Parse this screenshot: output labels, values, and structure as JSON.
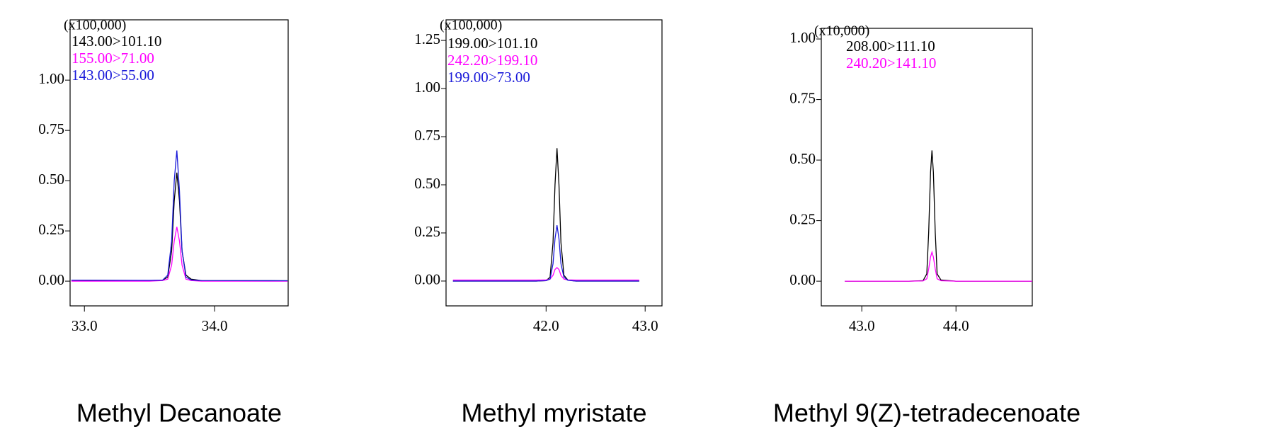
{
  "chart_data": [
    {
      "type": "line",
      "title": "Methyl Decanoate",
      "annotation": "(x100,000)",
      "x": [
        32.9,
        33.5,
        33.6,
        33.64,
        33.67,
        33.69,
        33.71,
        33.73,
        33.75,
        33.78,
        33.82,
        33.9,
        34.56
      ],
      "series": [
        {
          "name": "143.00>101.10",
          "color": "#000000",
          "values": [
            0.005,
            0.003,
            0.005,
            0.02,
            0.15,
            0.4,
            0.54,
            0.4,
            0.15,
            0.03,
            0.01,
            0.003,
            0.002
          ]
        },
        {
          "name": "155.00>71.00",
          "color": "#ff00ff",
          "values": [
            0.0,
            0.0,
            0.003,
            0.01,
            0.08,
            0.2,
            0.27,
            0.2,
            0.08,
            0.01,
            0.003,
            0.0,
            0.0
          ]
        },
        {
          "name": "143.00>55.00",
          "color": "#1a1ad9",
          "values": [
            0.005,
            0.004,
            0.005,
            0.03,
            0.2,
            0.5,
            0.65,
            0.45,
            0.15,
            0.02,
            0.006,
            0.003,
            0.002
          ]
        }
      ],
      "xlim": [
        32.89,
        34.565
      ],
      "ylim": [
        -0.123,
        1.3
      ],
      "xticks": [
        {
          "value": 33,
          "label": "33.0"
        },
        {
          "value": 34,
          "label": "34.0"
        }
      ],
      "yticks": [
        {
          "value": 0,
          "label": "0.00"
        },
        {
          "value": 0.25,
          "label": "0.25"
        },
        {
          "value": 0.5,
          "label": "0.50"
        },
        {
          "value": 0.75,
          "label": "0.75"
        },
        {
          "value": 1,
          "label": "1.00"
        }
      ]
    },
    {
      "type": "line",
      "title": "Methyl myristate",
      "annotation": "(x100,000)",
      "x": [
        41.06,
        41.9,
        42.0,
        42.04,
        42.07,
        42.09,
        42.11,
        42.13,
        42.15,
        42.18,
        42.22,
        42.3,
        42.94
      ],
      "series": [
        {
          "name": "199.00>101.10",
          "color": "#000000",
          "values": [
            0.0,
            0.0,
            0.002,
            0.02,
            0.2,
            0.5,
            0.69,
            0.5,
            0.2,
            0.03,
            0.005,
            0.0,
            0.0
          ]
        },
        {
          "name": "242.20>199.10",
          "color": "#ff00ff",
          "values": [
            0.005,
            0.005,
            0.006,
            0.01,
            0.03,
            0.06,
            0.07,
            0.06,
            0.03,
            0.01,
            0.006,
            0.005,
            0.005
          ]
        },
        {
          "name": "199.00>73.00",
          "color": "#1a1ad9",
          "values": [
            0.0,
            0.0,
            0.002,
            0.01,
            0.09,
            0.22,
            0.29,
            0.22,
            0.09,
            0.02,
            0.004,
            0.0,
            0.0
          ]
        }
      ],
      "xlim": [
        40.99,
        43.17
      ],
      "ylim": [
        -0.129,
        1.357
      ],
      "xticks": [
        {
          "value": 42,
          "label": "42.0"
        },
        {
          "value": 43,
          "label": "43.0"
        }
      ],
      "yticks": [
        {
          "value": 0,
          "label": "0.00"
        },
        {
          "value": 0.25,
          "label": "0.25"
        },
        {
          "value": 0.5,
          "label": "0.50"
        },
        {
          "value": 0.75,
          "label": "0.75"
        },
        {
          "value": 1,
          "label": "1.00"
        },
        {
          "value": 1.25,
          "label": "1.25"
        }
      ]
    },
    {
      "type": "line",
      "title": "Methyl 9(Z)-tetradecenoate",
      "annotation": "(x10,000)",
      "x": [
        42.82,
        43.5,
        43.65,
        43.69,
        43.71,
        43.73,
        43.745,
        43.76,
        43.78,
        43.8,
        43.84,
        44.0,
        44.81
      ],
      "series": [
        {
          "name": "208.00>111.10",
          "color": "#000000",
          "values": [
            0.0,
            0.0,
            0.002,
            0.03,
            0.2,
            0.45,
            0.54,
            0.45,
            0.2,
            0.03,
            0.005,
            0.0,
            0.0
          ]
        },
        {
          "name": "240.20>141.10",
          "color": "#ff00ff",
          "values": [
            0.0,
            0.0,
            0.001,
            0.01,
            0.05,
            0.1,
            0.12,
            0.1,
            0.05,
            0.01,
            0.002,
            0.0,
            0.0
          ]
        }
      ],
      "xlim": [
        42.57,
        44.81
      ],
      "ylim": [
        -0.102,
        1.044
      ],
      "xticks": [
        {
          "value": 43,
          "label": "43.0"
        },
        {
          "value": 44,
          "label": "44.0"
        }
      ],
      "yticks": [
        {
          "value": 0,
          "label": "0.00"
        },
        {
          "value": 0.25,
          "label": "0.25"
        },
        {
          "value": 0.5,
          "label": "0.50"
        },
        {
          "value": 0.75,
          "label": "0.75"
        },
        {
          "value": 1,
          "label": "1.00"
        }
      ]
    }
  ]
}
